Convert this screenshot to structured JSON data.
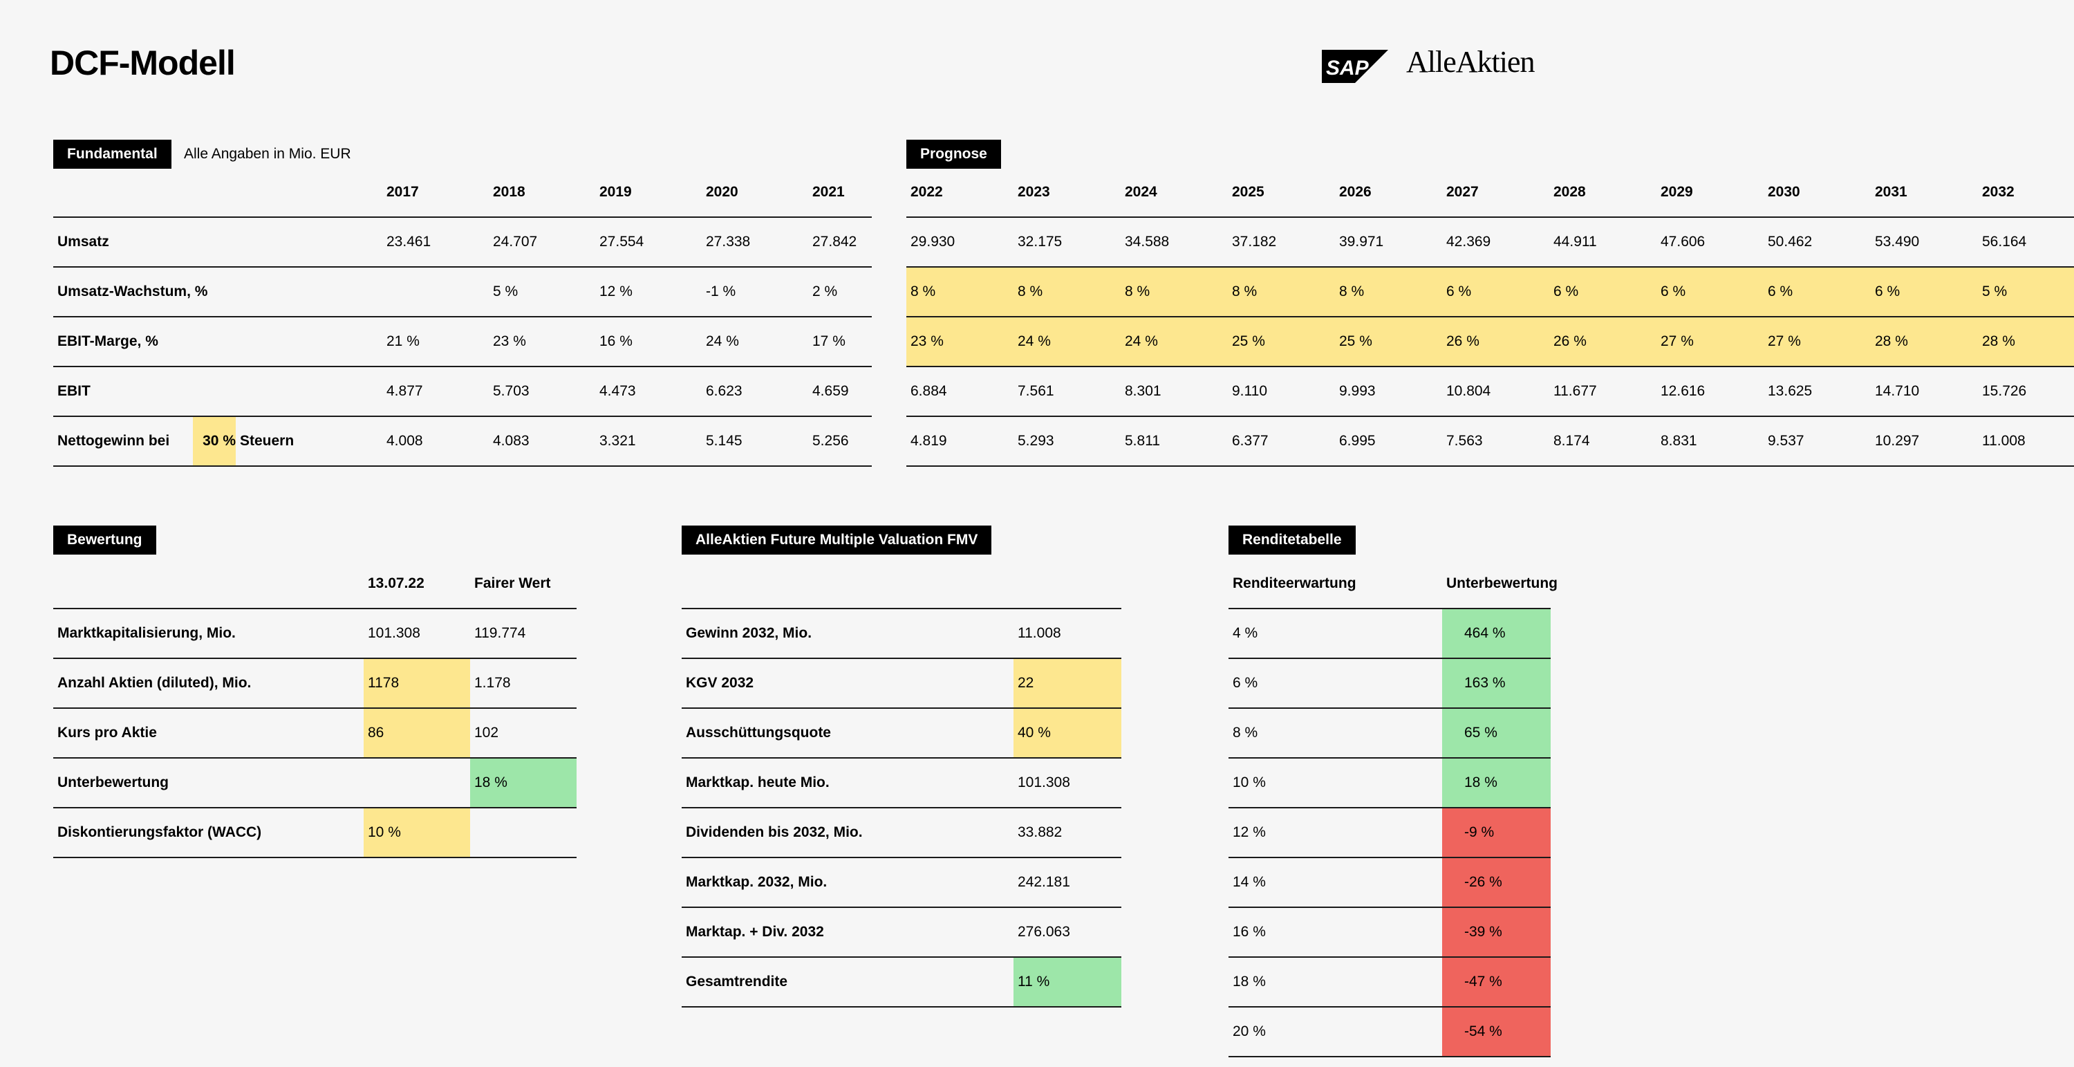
{
  "header": {
    "title": "DCF-Modell",
    "brand": "AlleAktien",
    "logo_text": "SAP"
  },
  "fundamental": {
    "label": "Fundamental",
    "note": "Alle Angaben in Mio. EUR",
    "years": [
      "2017",
      "2018",
      "2019",
      "2020",
      "2021"
    ],
    "rows": {
      "umsatz": {
        "label": "Umsatz",
        "values": [
          "23.461",
          "24.707",
          "27.554",
          "27.338",
          "27.842"
        ]
      },
      "wachstum": {
        "label": "Umsatz-Wachstum, %",
        "values": [
          "",
          "5 %",
          "12 %",
          "-1 %",
          "2 %"
        ]
      },
      "marge": {
        "label": "EBIT-Marge, %",
        "values": [
          "21 %",
          "23 %",
          "16 %",
          "24 %",
          "17 %"
        ]
      },
      "ebit": {
        "label": "EBIT",
        "values": [
          "4.877",
          "5.703",
          "4.473",
          "6.623",
          "4.659"
        ]
      },
      "netto": {
        "label": "Nettogewinn bei",
        "tax_rate": "30 %",
        "tax_label": "Steuern",
        "values": [
          "4.008",
          "4.083",
          "3.321",
          "5.145",
          "5.256"
        ]
      }
    }
  },
  "prognose": {
    "label": "Prognose",
    "years": [
      "2022",
      "2023",
      "2024",
      "2025",
      "2026",
      "2027",
      "2028",
      "2029",
      "2030",
      "2031",
      "2032"
    ],
    "rows": {
      "umsatz": [
        "29.930",
        "32.175",
        "34.588",
        "37.182",
        "39.971",
        "42.369",
        "44.911",
        "47.606",
        "50.462",
        "53.490",
        "56.164"
      ],
      "wachstum": [
        "8 %",
        "8 %",
        "8 %",
        "8 %",
        "8 %",
        "6 %",
        "6 %",
        "6 %",
        "6 %",
        "6 %",
        "5 %"
      ],
      "marge": [
        "23 %",
        "24 %",
        "24 %",
        "25 %",
        "25 %",
        "26 %",
        "26 %",
        "27 %",
        "27 %",
        "28 %",
        "28 %"
      ],
      "ebit": [
        "6.884",
        "7.561",
        "8.301",
        "9.110",
        "9.993",
        "10.804",
        "11.677",
        "12.616",
        "13.625",
        "14.710",
        "15.726"
      ],
      "netto": [
        "4.819",
        "5.293",
        "5.811",
        "6.377",
        "6.995",
        "7.563",
        "8.174",
        "8.831",
        "9.537",
        "10.297",
        "11.008"
      ]
    }
  },
  "bewertung": {
    "label": "Bewertung",
    "col1": "13.07.22",
    "col2": "Fairer Wert",
    "rows": [
      {
        "label": "Marktkapitalisierung, Mio.",
        "v1": "101.308",
        "v2": "119.774"
      },
      {
        "label": "Anzahl Aktien (diluted), Mio.",
        "v1": "1178",
        "v2": "1.178"
      },
      {
        "label": "Kurs pro Aktie",
        "v1": "86",
        "v2": "102"
      },
      {
        "label": "Unterbewertung",
        "v1": "",
        "v2": "18 %"
      },
      {
        "label": "Diskontierungsfaktor (WACC)",
        "v1": "10 %",
        "v2": ""
      }
    ]
  },
  "fmv": {
    "label": "AlleAktien Future Multiple Valuation FMV",
    "rows": [
      {
        "label": "Gewinn 2032, Mio.",
        "value": "11.008"
      },
      {
        "label": "KGV 2032",
        "value": "22"
      },
      {
        "label": "Ausschüttungsquote",
        "value": "40 %"
      },
      {
        "label": "Marktkap. heute Mio.",
        "value": "101.308"
      },
      {
        "label": "Dividenden bis 2032, Mio.",
        "value": "33.882"
      },
      {
        "label": "Marktkap. 2032, Mio.",
        "value": "242.181"
      },
      {
        "label": "Marktap. + Div. 2032",
        "value": "276.063"
      },
      {
        "label": "Gesamtrendite",
        "value": "11 %"
      }
    ]
  },
  "rendite": {
    "label": "Renditetabelle",
    "col1": "Renditeerwartung",
    "col2": "Unterbewertung",
    "rows": [
      {
        "r": "4 %",
        "u": "464 %"
      },
      {
        "r": "6 %",
        "u": "163 %"
      },
      {
        "r": "8 %",
        "u": "65 %"
      },
      {
        "r": "10 %",
        "u": "18 %"
      },
      {
        "r": "12 %",
        "u": "-9 %"
      },
      {
        "r": "14 %",
        "u": "-26 %"
      },
      {
        "r": "16 %",
        "u": "-39 %"
      },
      {
        "r": "18 %",
        "u": "-47 %"
      },
      {
        "r": "20 %",
        "u": "-54 %"
      }
    ]
  },
  "colors": {
    "input_yellow": "#fde78f",
    "positive_green": "#9de6a9",
    "negative_red": "#ef645d",
    "label_black": "#000000"
  }
}
